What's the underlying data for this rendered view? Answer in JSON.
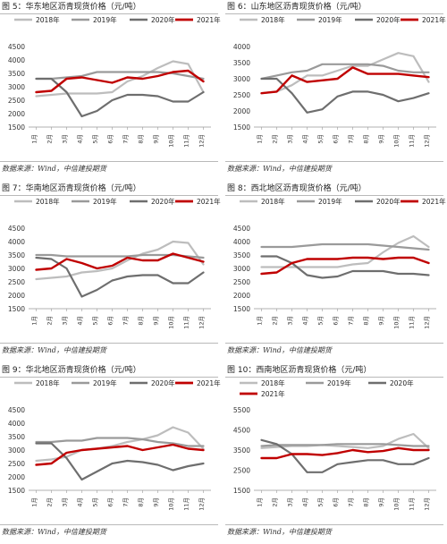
{
  "colors": {
    "s2018": "#bdbdbd",
    "s2019": "#9a9a9a",
    "s2020": "#6e6e6e",
    "s2021": "#c00000"
  },
  "source_label": "数据来源：Wind，中信建投期货",
  "chart_data": [
    {
      "type": "line",
      "title": "图 5：华东地区沥青现货价格（元/吨）",
      "categories": [
        "1月",
        "2月",
        "3月",
        "4月",
        "5月",
        "6月",
        "7月",
        "8月",
        "9月",
        "10月",
        "11月",
        "12月"
      ],
      "ylim": [
        1500,
        4500
      ],
      "yticks": [
        1500,
        2000,
        2500,
        3000,
        3500,
        4000,
        4500
      ],
      "legend": "top-two-rows",
      "grid": false,
      "series": [
        {
          "name": "2018年",
          "values": [
            2650,
            2700,
            2750,
            2750,
            2750,
            2800,
            3200,
            3400,
            3700,
            3950,
            3850,
            2800
          ]
        },
        {
          "name": "2019年",
          "values": [
            3300,
            3300,
            3350,
            3400,
            3550,
            3550,
            3550,
            3550,
            3550,
            3500,
            3400,
            3300
          ]
        },
        {
          "name": "2020年",
          "values": [
            3300,
            3300,
            2800,
            1900,
            2100,
            2500,
            2700,
            2700,
            2650,
            2450,
            2450,
            2800
          ]
        },
        {
          "name": "2021年",
          "values": [
            2800,
            2850,
            3300,
            3350,
            3250,
            3150,
            3350,
            3300,
            3400,
            3550,
            3600,
            3200
          ]
        }
      ]
    },
    {
      "type": "line",
      "title": "图 6：山东地区沥青现货价格（元/吨）",
      "categories": [
        "1月",
        "2月",
        "3月",
        "4月",
        "5月",
        "6月",
        "7月",
        "8月",
        "9月",
        "10月",
        "11月",
        "12月"
      ],
      "ylim": [
        1500,
        4000
      ],
      "yticks": [
        1500,
        2000,
        2500,
        3000,
        3500,
        4000
      ],
      "legend": "top-two-rows",
      "grid": false,
      "series": [
        {
          "name": "2018年",
          "values": [
            2550,
            2600,
            2800,
            3100,
            3100,
            3250,
            3400,
            3400,
            3600,
            3800,
            3700,
            2900
          ]
        },
        {
          "name": "2019年",
          "values": [
            3000,
            3100,
            3200,
            3250,
            3450,
            3450,
            3450,
            3450,
            3400,
            3250,
            3200,
            3200
          ]
        },
        {
          "name": "2020年",
          "values": [
            3000,
            3000,
            2550,
            1950,
            2050,
            2450,
            2600,
            2600,
            2500,
            2300,
            2400,
            2550
          ]
        },
        {
          "name": "2021年",
          "values": [
            2550,
            2600,
            3100,
            2900,
            2950,
            3000,
            3350,
            3150,
            3150,
            3150,
            3100,
            3050
          ]
        }
      ]
    },
    {
      "type": "line",
      "title": "图 7：华南地区沥青现货价格（元/吨）",
      "categories": [
        "1月",
        "2月",
        "3月",
        "4月",
        "5月",
        "6月",
        "7月",
        "8月",
        "9月",
        "10月",
        "11月",
        "12月"
      ],
      "ylim": [
        1500,
        4500
      ],
      "yticks": [
        1500,
        2000,
        2500,
        3000,
        3500,
        4000,
        4500
      ],
      "legend": "top-two-rows",
      "grid": false,
      "series": [
        {
          "name": "2018年",
          "values": [
            2600,
            2650,
            2700,
            2850,
            2900,
            3000,
            3300,
            3550,
            3700,
            4000,
            3950,
            3150
          ]
        },
        {
          "name": "2019年",
          "values": [
            3500,
            3500,
            3450,
            3450,
            3450,
            3450,
            3450,
            3500,
            3500,
            3500,
            3450,
            3400
          ]
        },
        {
          "name": "2020年",
          "values": [
            3400,
            3350,
            3000,
            1950,
            2200,
            2550,
            2700,
            2750,
            2750,
            2450,
            2450,
            2850
          ]
        },
        {
          "name": "2021年",
          "values": [
            2950,
            3000,
            3350,
            3200,
            3000,
            3100,
            3400,
            3300,
            3300,
            3550,
            3400,
            3250
          ]
        }
      ]
    },
    {
      "type": "line",
      "title": "图 8：西北地区沥青现货价格（元/吨）",
      "categories": [
        "1月",
        "2月",
        "3月",
        "4月",
        "5月",
        "6月",
        "7月",
        "8月",
        "9月",
        "10月",
        "11月",
        "12月"
      ],
      "ylim": [
        1500,
        4500
      ],
      "yticks": [
        1500,
        2000,
        2500,
        3000,
        3500,
        4000,
        4500
      ],
      "legend": "top-two-rows",
      "grid": false,
      "series": [
        {
          "name": "2018年",
          "values": [
            3050,
            3050,
            3050,
            3050,
            3050,
            3050,
            3150,
            3200,
            3600,
            3950,
            4200,
            3800
          ]
        },
        {
          "name": "2019年",
          "values": [
            3800,
            3800,
            3800,
            3850,
            3900,
            3900,
            3900,
            3900,
            3850,
            3800,
            3750,
            3700
          ]
        },
        {
          "name": "2020年",
          "values": [
            3450,
            3450,
            3200,
            2750,
            2650,
            2700,
            2900,
            2900,
            2900,
            2800,
            2800,
            2750
          ]
        },
        {
          "name": "2021年",
          "values": [
            2800,
            2850,
            3200,
            3350,
            3350,
            3350,
            3400,
            3400,
            3350,
            3400,
            3400,
            3200
          ]
        }
      ]
    },
    {
      "type": "line",
      "title": "图 9：华北地区沥青现货价格（元/吨）",
      "categories": [
        "1月",
        "2月",
        "3月",
        "4月",
        "5月",
        "6月",
        "7月",
        "8月",
        "9月",
        "10月",
        "11月",
        "12月"
      ],
      "ylim": [
        1500,
        4500
      ],
      "yticks": [
        1500,
        2000,
        2500,
        3000,
        3500,
        4000,
        4500
      ],
      "legend": "top-two-rows",
      "grid": false,
      "series": [
        {
          "name": "2018年",
          "values": [
            2600,
            2650,
            2750,
            3000,
            3050,
            3150,
            3300,
            3400,
            3550,
            3850,
            3650,
            3050
          ]
        },
        {
          "name": "2019年",
          "values": [
            3300,
            3300,
            3350,
            3350,
            3450,
            3450,
            3450,
            3400,
            3300,
            3250,
            3150,
            3150
          ]
        },
        {
          "name": "2020年",
          "values": [
            3250,
            3250,
            2700,
            1900,
            2200,
            2500,
            2600,
            2550,
            2450,
            2250,
            2400,
            2500
          ]
        },
        {
          "name": "2021年",
          "values": [
            2450,
            2500,
            2900,
            3000,
            3050,
            3100,
            3150,
            3000,
            3100,
            3200,
            3050,
            3000
          ]
        }
      ]
    },
    {
      "type": "line",
      "title": "图 10：西南地区沥青现货价格（元/吨）",
      "categories": [
        "1月",
        "2月",
        "3月",
        "4月",
        "5月",
        "6月",
        "7月",
        "8月",
        "9月",
        "10月",
        "11月",
        "12月"
      ],
      "ylim": [
        1500,
        5500
      ],
      "yticks": [
        1500,
        2500,
        3500,
        4500,
        5500
      ],
      "legend": "top-two-rows",
      "grid": false,
      "series": [
        {
          "name": "2018年",
          "values": [
            3600,
            3650,
            3700,
            3700,
            3750,
            3700,
            3650,
            3600,
            3700,
            4050,
            4300,
            3600
          ]
        },
        {
          "name": "2019年",
          "values": [
            3700,
            3750,
            3750,
            3750,
            3750,
            3800,
            3800,
            3800,
            3800,
            3750,
            3700,
            3700
          ]
        },
        {
          "name": "2020年",
          "values": [
            4000,
            3800,
            3300,
            2400,
            2400,
            2800,
            2900,
            3000,
            3000,
            2800,
            2800,
            3100
          ]
        },
        {
          "name": "2021年",
          "values": [
            3100,
            3100,
            3300,
            3300,
            3250,
            3350,
            3500,
            3400,
            3450,
            3600,
            3500,
            3500
          ]
        }
      ]
    }
  ]
}
